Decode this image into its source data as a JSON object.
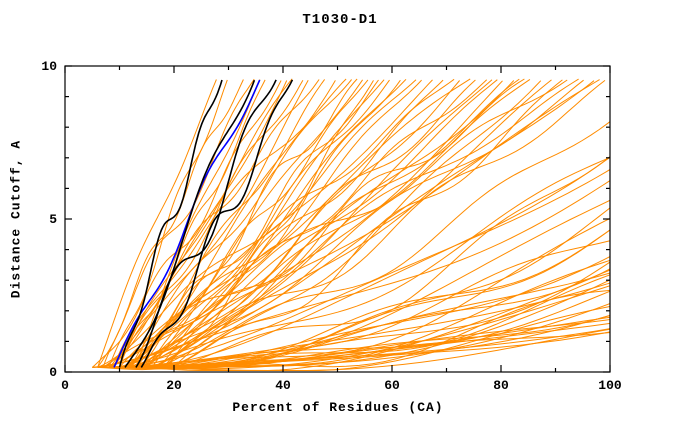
{
  "chart_data": {
    "type": "line",
    "title": "T1030-D1",
    "xlabel": "Percent of Residues (CA)",
    "ylabel": "Distance Cutoff, A",
    "xlim": [
      0,
      100
    ],
    "ylim": [
      0,
      10
    ],
    "x_ticks": [
      0,
      20,
      40,
      60,
      80,
      100
    ],
    "y_ticks": [
      0,
      5,
      10
    ],
    "x_minor_step": 10,
    "y_minor_step": 1,
    "grid": false,
    "legend": "none",
    "curve_start_y": 0.15,
    "curve_top_y": 9.65,
    "colors": {
      "orange": "#ff8c00",
      "black": "#000000",
      "blue": "#0000ff",
      "axis": "#000000"
    },
    "series_groups": [
      {
        "name": "other-model-curves",
        "color": "#ff8c00",
        "width": 1,
        "curves": [
          [
            6,
            28,
            0.95,
            0.3
          ],
          [
            8,
            30,
            1.05,
            0.4
          ],
          [
            7,
            33,
            0.9,
            0.35
          ],
          [
            8,
            41,
            1.2,
            0.3
          ],
          [
            9,
            44,
            1.0,
            0.45
          ],
          [
            10,
            47,
            0.85,
            0.3
          ],
          [
            11,
            50,
            1.15,
            0.4
          ],
          [
            12,
            53,
            0.9,
            0.35
          ],
          [
            13,
            56,
            1.05,
            0.3
          ],
          [
            14,
            59,
            1.1,
            0.45
          ],
          [
            6,
            35,
            1.0,
            0.5
          ],
          [
            8,
            37,
            1.2,
            0.3
          ],
          [
            10,
            42,
            0.9,
            0.4
          ],
          [
            12,
            48,
            1.05,
            0.35
          ],
          [
            14,
            54,
            0.95,
            0.5
          ],
          [
            7,
            45,
            1.3,
            0.4
          ],
          [
            9,
            52,
            0.8,
            0.3
          ],
          [
            11,
            58,
            1.1,
            0.45
          ],
          [
            13,
            36,
            0.9,
            0.3
          ],
          [
            15,
            60,
            1.0,
            0.4
          ],
          [
            5,
            40,
            1.15,
            0.35
          ],
          [
            16,
            55,
            0.95,
            0.3
          ],
          [
            17,
            62,
            1.05,
            0.45
          ],
          [
            18,
            57,
            1.2,
            0.3
          ],
          [
            19,
            63,
            0.9,
            0.4
          ],
          [
            6,
            65,
            1.1,
            0.4
          ],
          [
            8,
            70,
            1.25,
            0.35
          ],
          [
            10,
            75,
            0.95,
            0.45
          ],
          [
            12,
            80,
            1.15,
            0.3
          ],
          [
            14,
            85,
            1.0,
            0.5
          ],
          [
            16,
            90,
            1.2,
            0.4
          ],
          [
            18,
            95,
            0.9,
            0.35
          ],
          [
            9,
            100,
            1.3,
            0.45
          ],
          [
            11,
            68,
            1.05,
            0.3
          ],
          [
            13,
            73,
            1.2,
            0.4
          ],
          [
            15,
            78,
            0.95,
            0.35
          ],
          [
            17,
            83,
            1.1,
            0.5
          ],
          [
            19,
            88,
            1.25,
            0.3
          ],
          [
            7,
            93,
            1.0,
            0.4
          ],
          [
            5,
            98,
            1.35,
            0.35
          ],
          [
            10,
            66,
            1.15,
            0.45
          ],
          [
            12,
            72,
            0.9,
            0.3
          ],
          [
            14,
            79,
            1.2,
            0.4
          ],
          [
            16,
            86,
            1.05,
            0.35
          ],
          [
            18,
            92,
            1.3,
            0.45
          ],
          [
            8,
            99,
            1.1,
            0.3
          ],
          [
            20,
            84,
            0.95,
            0.4
          ],
          [
            6,
            76,
            1.25,
            0.5
          ],
          [
            9,
            81,
            1.4,
            0.35
          ],
          [
            11,
            96,
            1.15,
            0.45
          ],
          [
            6,
            110,
            1.5,
            0.4
          ],
          [
            8,
            118,
            1.7,
            0.35
          ],
          [
            10,
            126,
            1.4,
            0.45
          ],
          [
            12,
            134,
            1.9,
            0.3
          ],
          [
            14,
            142,
            1.6,
            0.5
          ],
          [
            16,
            150,
            2.1,
            0.4
          ],
          [
            18,
            158,
            1.5,
            0.35
          ],
          [
            5,
            166,
            2.3,
            0.45
          ],
          [
            7,
            174,
            1.8,
            0.3
          ],
          [
            9,
            182,
            2.0,
            0.4
          ],
          [
            11,
            190,
            1.6,
            0.35
          ],
          [
            13,
            200,
            2.4,
            0.5
          ],
          [
            15,
            210,
            1.9,
            0.3
          ],
          [
            17,
            220,
            2.2,
            0.4
          ],
          [
            19,
            235,
            1.7,
            0.35
          ],
          [
            6,
            115,
            2.0,
            0.45
          ],
          [
            8,
            125,
            1.5,
            0.3
          ],
          [
            10,
            135,
            2.2,
            0.4
          ],
          [
            12,
            145,
            1.8,
            0.35
          ],
          [
            14,
            155,
            2.5,
            0.45
          ],
          [
            16,
            165,
            1.6,
            0.3
          ],
          [
            18,
            178,
            2.1,
            0.5
          ],
          [
            20,
            192,
            1.9,
            0.4
          ],
          [
            7,
            205,
            2.3,
            0.35
          ],
          [
            9,
            218,
            1.7,
            0.45
          ],
          [
            11,
            232,
            2.0,
            0.3
          ],
          [
            13,
            246,
            2.4,
            0.4
          ],
          [
            15,
            260,
            1.8,
            0.35
          ],
          [
            5,
            130,
            1.45,
            0.5
          ],
          [
            17,
            160,
            2.0,
            0.4
          ],
          [
            19,
            175,
            1.55,
            0.35
          ],
          [
            8,
            240,
            2.2,
            0.45
          ],
          [
            10,
            255,
            1.9,
            0.3
          ],
          [
            12,
            150,
            1.65,
            0.4
          ],
          [
            14,
            185,
            2.05,
            0.35
          ]
        ]
      },
      {
        "name": "reference-curve-blue",
        "color": "#0000ff",
        "width": 1.6,
        "curves": [
          [
            9,
            36,
            1.0,
            0.35
          ]
        ]
      },
      {
        "name": "highlighted-curves-black",
        "color": "#000000",
        "width": 1.6,
        "curves": [
          [
            10,
            29,
            0.95,
            0.5
          ],
          [
            11,
            35,
            1.05,
            0.7
          ],
          [
            13,
            39,
            1.0,
            0.8
          ],
          [
            14,
            42,
            1.1,
            0.6
          ]
        ]
      }
    ]
  }
}
